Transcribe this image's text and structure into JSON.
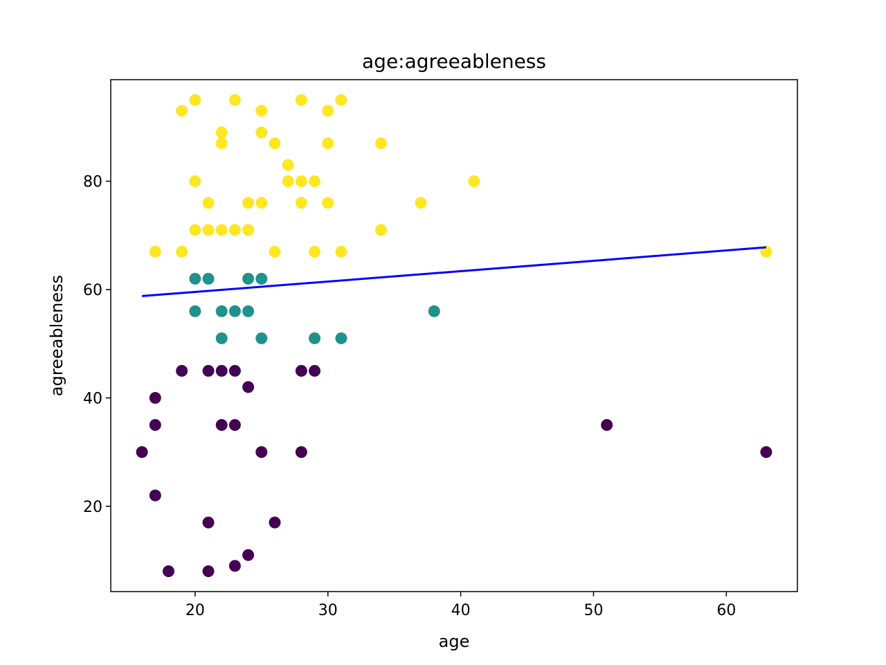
{
  "chart_data": {
    "type": "scatter",
    "title": "age:agreeableness",
    "xlabel": "age",
    "ylabel": "agreeableness",
    "xlim": [
      13.65,
      65.35
    ],
    "ylim": [
      4.25,
      98.75
    ],
    "xticks": [
      20,
      30,
      40,
      50,
      60
    ],
    "yticks": [
      20,
      40,
      60,
      80
    ],
    "grid": false,
    "colors": {
      "low": "#440154",
      "mid": "#21918c",
      "high": "#fde725",
      "line": "#0000ff"
    },
    "series": [
      {
        "group": "high",
        "points": [
          [
            19,
            93
          ],
          [
            20,
            95
          ],
          [
            23,
            95
          ],
          [
            25,
            93
          ],
          [
            28,
            95
          ],
          [
            30,
            93
          ],
          [
            31,
            95
          ],
          [
            22,
            89
          ],
          [
            25,
            89
          ],
          [
            22,
            87
          ],
          [
            26,
            87
          ],
          [
            30,
            87
          ],
          [
            34,
            87
          ],
          [
            27,
            83
          ],
          [
            20,
            80
          ],
          [
            27,
            80
          ],
          [
            28,
            80
          ],
          [
            29,
            80
          ],
          [
            41,
            80
          ],
          [
            21,
            76
          ],
          [
            24,
            76
          ],
          [
            25,
            76
          ],
          [
            28,
            76
          ],
          [
            30,
            76
          ],
          [
            37,
            76
          ],
          [
            20,
            71
          ],
          [
            21,
            71
          ],
          [
            22,
            71
          ],
          [
            23,
            71
          ],
          [
            24,
            71
          ],
          [
            34,
            71
          ],
          [
            17,
            67
          ],
          [
            19,
            67
          ],
          [
            26,
            67
          ],
          [
            29,
            67
          ],
          [
            31,
            67
          ],
          [
            63,
            67
          ]
        ]
      },
      {
        "group": "mid",
        "points": [
          [
            20,
            62
          ],
          [
            21,
            62
          ],
          [
            24,
            62
          ],
          [
            25,
            62
          ],
          [
            20,
            56
          ],
          [
            22,
            56
          ],
          [
            23,
            56
          ],
          [
            24,
            56
          ],
          [
            38,
            56
          ],
          [
            22,
            51
          ],
          [
            25,
            51
          ],
          [
            29,
            51
          ],
          [
            31,
            51
          ]
        ]
      },
      {
        "group": "low",
        "points": [
          [
            19,
            45
          ],
          [
            21,
            45
          ],
          [
            22,
            45
          ],
          [
            23,
            45
          ],
          [
            28,
            45
          ],
          [
            29,
            45
          ],
          [
            24,
            42
          ],
          [
            17,
            40
          ],
          [
            17,
            35
          ],
          [
            22,
            35
          ],
          [
            23,
            35
          ],
          [
            51,
            35
          ],
          [
            16,
            30
          ],
          [
            25,
            30
          ],
          [
            28,
            30
          ],
          [
            63,
            30
          ],
          [
            17,
            22
          ],
          [
            21,
            17
          ],
          [
            26,
            17
          ],
          [
            24,
            11
          ],
          [
            23,
            9
          ],
          [
            18,
            8
          ],
          [
            21,
            8
          ]
        ]
      }
    ],
    "fit_line": {
      "x": [
        16,
        63
      ],
      "y": [
        58.8,
        67.8
      ]
    }
  }
}
